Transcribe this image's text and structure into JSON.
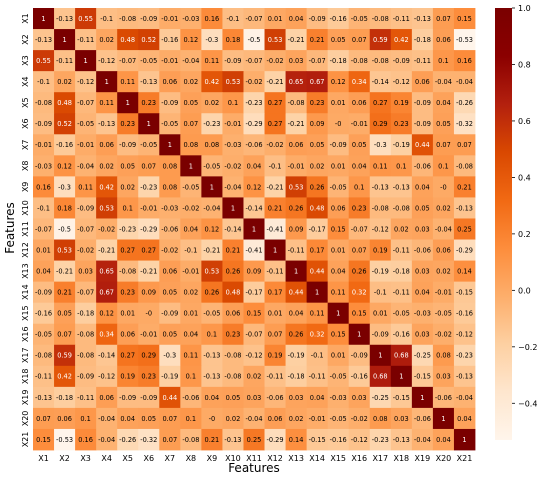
{
  "chart_data": {
    "type": "heatmap",
    "title": "",
    "xlabel": "Features",
    "ylabel": "Features",
    "features": [
      "X1",
      "X2",
      "X3",
      "X4",
      "X5",
      "X6",
      "X7",
      "X8",
      "X9",
      "X10",
      "X11",
      "X12",
      "X13",
      "X14",
      "X15",
      "X16",
      "X17",
      "X18",
      "X19",
      "X20",
      "X21"
    ],
    "values": [
      [
        1,
        -0.13,
        0.55,
        -0.1,
        -0.08,
        -0.09,
        -0.01,
        -0.03,
        0.16,
        -0.1,
        -0.07,
        0.01,
        0.04,
        -0.09,
        -0.16,
        -0.05,
        -0.08,
        -0.11,
        -0.13,
        0.07,
        0.15
      ],
      [
        -0.13,
        1,
        -0.11,
        0.02,
        0.48,
        0.52,
        -0.16,
        0.12,
        -0.3,
        0.18,
        -0.5,
        0.53,
        -0.21,
        0.21,
        0.05,
        0.07,
        0.59,
        0.42,
        -0.18,
        0.06,
        -0.53
      ],
      [
        0.55,
        -0.11,
        1,
        -0.12,
        -0.07,
        -0.05,
        -0.01,
        -0.04,
        0.11,
        -0.09,
        -0.07,
        -0.02,
        0.03,
        -0.07,
        -0.18,
        -0.08,
        -0.08,
        -0.09,
        -0.11,
        0.1,
        0.16
      ],
      [
        -0.1,
        0.02,
        -0.12,
        1,
        0.11,
        -0.13,
        0.06,
        0.02,
        0.42,
        0.53,
        -0.02,
        -0.21,
        0.65,
        0.67,
        0.12,
        0.34,
        -0.14,
        -0.12,
        0.06,
        -0.04,
        -0.04
      ],
      [
        -0.08,
        0.48,
        -0.07,
        0.11,
        1,
        0.23,
        -0.09,
        0.05,
        0.02,
        0.1,
        -0.23,
        0.27,
        -0.08,
        0.23,
        0.01,
        0.06,
        0.27,
        0.19,
        -0.09,
        0.04,
        -0.26
      ],
      [
        -0.09,
        0.52,
        -0.05,
        -0.13,
        0.23,
        1,
        -0.05,
        0.07,
        -0.23,
        -0.01,
        -0.29,
        0.27,
        -0.21,
        0.09,
        0,
        -0.01,
        0.29,
        0.23,
        -0.09,
        0.05,
        -0.32
      ],
      [
        -0.01,
        -0.16,
        -0.01,
        0.06,
        -0.09,
        -0.05,
        1,
        0.08,
        0.08,
        -0.03,
        -0.06,
        -0.02,
        0.06,
        0.05,
        -0.09,
        0.05,
        -0.3,
        -0.19,
        0.44,
        0.07,
        0.07
      ],
      [
        -0.03,
        0.12,
        -0.04,
        0.02,
        0.05,
        0.07,
        0.08,
        1,
        -0.05,
        -0.02,
        0.04,
        -0.1,
        -0.01,
        0.02,
        0.01,
        0.04,
        0.11,
        0.1,
        -0.06,
        0.1,
        -0.08
      ],
      [
        0.16,
        -0.3,
        0.11,
        0.42,
        0.02,
        -0.23,
        0.08,
        -0.05,
        1,
        -0.04,
        0.12,
        -0.21,
        0.53,
        0.26,
        -0.05,
        0.1,
        -0.13,
        -0.13,
        0.04,
        0,
        0.21
      ],
      [
        -0.1,
        0.18,
        -0.09,
        0.53,
        0.1,
        -0.01,
        -0.03,
        -0.02,
        -0.04,
        1,
        -0.14,
        0.21,
        0.26,
        0.48,
        0.06,
        0.23,
        -0.08,
        -0.08,
        0.05,
        0.02,
        -0.13
      ],
      [
        -0.07,
        -0.5,
        -0.07,
        -0.02,
        -0.23,
        -0.29,
        -0.06,
        0.04,
        0.12,
        -0.14,
        1,
        -0.41,
        0.09,
        -0.17,
        0.15,
        -0.07,
        -0.12,
        0.02,
        0.03,
        -0.04,
        0.25
      ],
      [
        0.01,
        0.53,
        -0.02,
        -0.21,
        0.27,
        0.27,
        -0.02,
        -0.1,
        -0.21,
        0.21,
        -0.41,
        1,
        -0.11,
        0.17,
        0.01,
        0.07,
        0.19,
        -0.11,
        -0.06,
        0.06,
        -0.29
      ],
      [
        0.04,
        -0.21,
        0.03,
        0.65,
        -0.08,
        -0.21,
        0.06,
        -0.01,
        0.53,
        0.26,
        0.09,
        -0.11,
        1,
        0.44,
        0.04,
        0.26,
        -0.19,
        -0.18,
        0.03,
        0.02,
        0.14
      ],
      [
        -0.09,
        0.21,
        -0.07,
        0.67,
        0.23,
        0.09,
        0.05,
        0.02,
        0.26,
        0.48,
        -0.17,
        0.17,
        0.44,
        1,
        0.11,
        0.32,
        -0.1,
        -0.11,
        0.04,
        -0.01,
        -0.15
      ],
      [
        -0.16,
        0.05,
        -0.18,
        0.12,
        0.01,
        0,
        -0.09,
        0.01,
        -0.05,
        0.06,
        0.15,
        0.01,
        0.04,
        0.11,
        1,
        0.15,
        0.01,
        -0.05,
        -0.03,
        -0.05,
        -0.16
      ],
      [
        -0.05,
        0.07,
        -0.08,
        0.34,
        0.06,
        -0.01,
        0.05,
        0.04,
        0.1,
        0.23,
        -0.07,
        0.07,
        0.26,
        0.32,
        0.15,
        1,
        -0.09,
        -0.16,
        0.03,
        -0.02,
        -0.12
      ],
      [
        -0.08,
        0.59,
        -0.08,
        -0.14,
        0.27,
        0.29,
        -0.3,
        0.11,
        -0.13,
        -0.08,
        -0.12,
        0.19,
        -0.19,
        -0.1,
        0.01,
        -0.09,
        1,
        0.68,
        -0.25,
        0.08,
        -0.23
      ],
      [
        -0.11,
        0.42,
        -0.09,
        -0.12,
        0.19,
        0.23,
        -0.19,
        0.1,
        -0.13,
        -0.08,
        0.02,
        -0.11,
        -0.18,
        -0.11,
        -0.05,
        -0.16,
        0.68,
        1,
        -0.15,
        0.03,
        -0.13
      ],
      [
        -0.13,
        -0.18,
        -0.11,
        0.06,
        -0.09,
        -0.09,
        0.44,
        -0.06,
        0.04,
        0.05,
        0.03,
        -0.06,
        0.03,
        0.04,
        -0.03,
        0.03,
        -0.25,
        -0.15,
        1,
        -0.06,
        -0.04
      ],
      [
        0.07,
        0.06,
        0.1,
        -0.04,
        0.04,
        0.05,
        0.07,
        0.1,
        0,
        0.02,
        -0.04,
        0.06,
        0.02,
        -0.01,
        -0.05,
        -0.02,
        0.08,
        0.03,
        -0.06,
        1,
        0.04
      ],
      [
        0.15,
        -0.53,
        0.16,
        -0.04,
        -0.26,
        -0.32,
        0.07,
        -0.08,
        0.21,
        -0.13,
        0.25,
        -0.29,
        0.14,
        -0.15,
        -0.16,
        -0.12,
        -0.23,
        -0.13,
        -0.04,
        0.04,
        1
      ]
    ],
    "colorbar": {
      "min": -0.53,
      "max": 1.0,
      "ticks": [
        -0.4,
        -0.2,
        0.0,
        0.2,
        0.4,
        0.6,
        0.8,
        1.0
      ],
      "tick_labels": [
        "−0.4",
        "−0.2",
        "0.0",
        "0.2",
        "0.4",
        "0.6",
        "0.8",
        "1.0"
      ]
    },
    "colormap": [
      "#fff5eb",
      "#fee6ce",
      "#fdd0a2",
      "#fdae6b",
      "#fd8d3c",
      "#f16913",
      "#d94801",
      "#b3200e",
      "#8b0000",
      "#7a0000"
    ]
  }
}
